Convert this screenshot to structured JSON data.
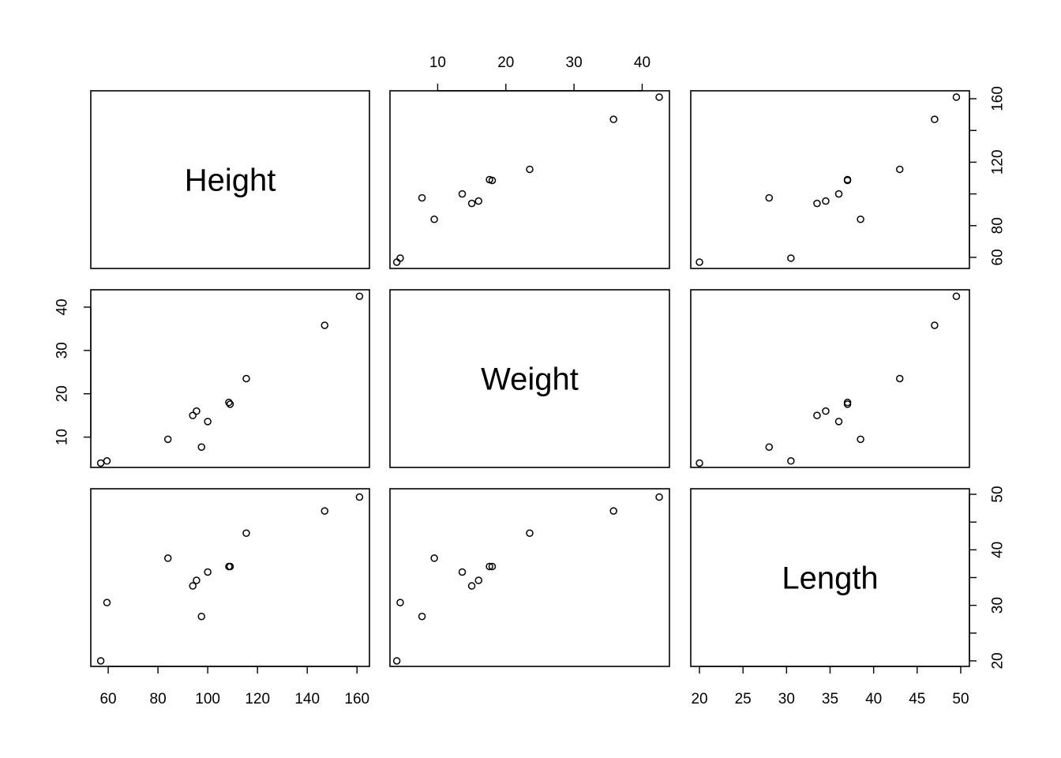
{
  "chart_data": {
    "type": "scatter",
    "kind": "pairs-matrix",
    "variables": [
      "Height",
      "Weight",
      "Length"
    ],
    "observations": [
      {
        "Height": 57,
        "Weight": 4.0,
        "Length": 20
      },
      {
        "Height": 59.5,
        "Weight": 4.5,
        "Length": 30.5
      },
      {
        "Height": 84,
        "Weight": 9.5,
        "Length": 38.5
      },
      {
        "Height": 94,
        "Weight": 15.0,
        "Length": 33.5
      },
      {
        "Height": 95.5,
        "Weight": 16.0,
        "Length": 34.5
      },
      {
        "Height": 97.5,
        "Weight": 7.7,
        "Length": 28
      },
      {
        "Height": 100,
        "Weight": 13.6,
        "Length": 36
      },
      {
        "Height": 108.5,
        "Weight": 18.0,
        "Length": 37
      },
      {
        "Height": 109,
        "Weight": 17.6,
        "Length": 37
      },
      {
        "Height": 115.5,
        "Weight": 23.5,
        "Length": 43
      },
      {
        "Height": 147,
        "Weight": 35.8,
        "Length": 47
      },
      {
        "Height": 161,
        "Weight": 42.5,
        "Length": 49.5
      }
    ],
    "ranges": {
      "Height": [
        53,
        165
      ],
      "Weight": [
        3,
        44
      ],
      "Length": [
        19,
        51
      ]
    },
    "ticks": {
      "Height": {
        "values": [
          60,
          80,
          100,
          120,
          140,
          160
        ],
        "labels": [
          "60",
          "80",
          "100",
          "120",
          "140",
          "160"
        ]
      },
      "Weight": {
        "values": [
          10,
          20,
          30,
          40
        ],
        "labels": [
          "10",
          "20",
          "30",
          "40"
        ]
      },
      "Length_bottom": {
        "values": [
          20,
          25,
          30,
          35,
          40,
          45,
          50
        ],
        "labels": [
          "20",
          "25",
          "30",
          "35",
          "40",
          "45",
          "50"
        ]
      },
      "Length_right": {
        "values": [
          20,
          25,
          30,
          35,
          40,
          45,
          50
        ],
        "labels": [
          "20",
          "",
          "30",
          "",
          "40",
          "",
          "50"
        ]
      },
      "Height_right": {
        "values": [
          60,
          80,
          100,
          120,
          140,
          160
        ],
        "labels": [
          "60",
          "80",
          "",
          "120",
          "",
          "160"
        ]
      }
    },
    "grid": false,
    "legend": "none"
  }
}
